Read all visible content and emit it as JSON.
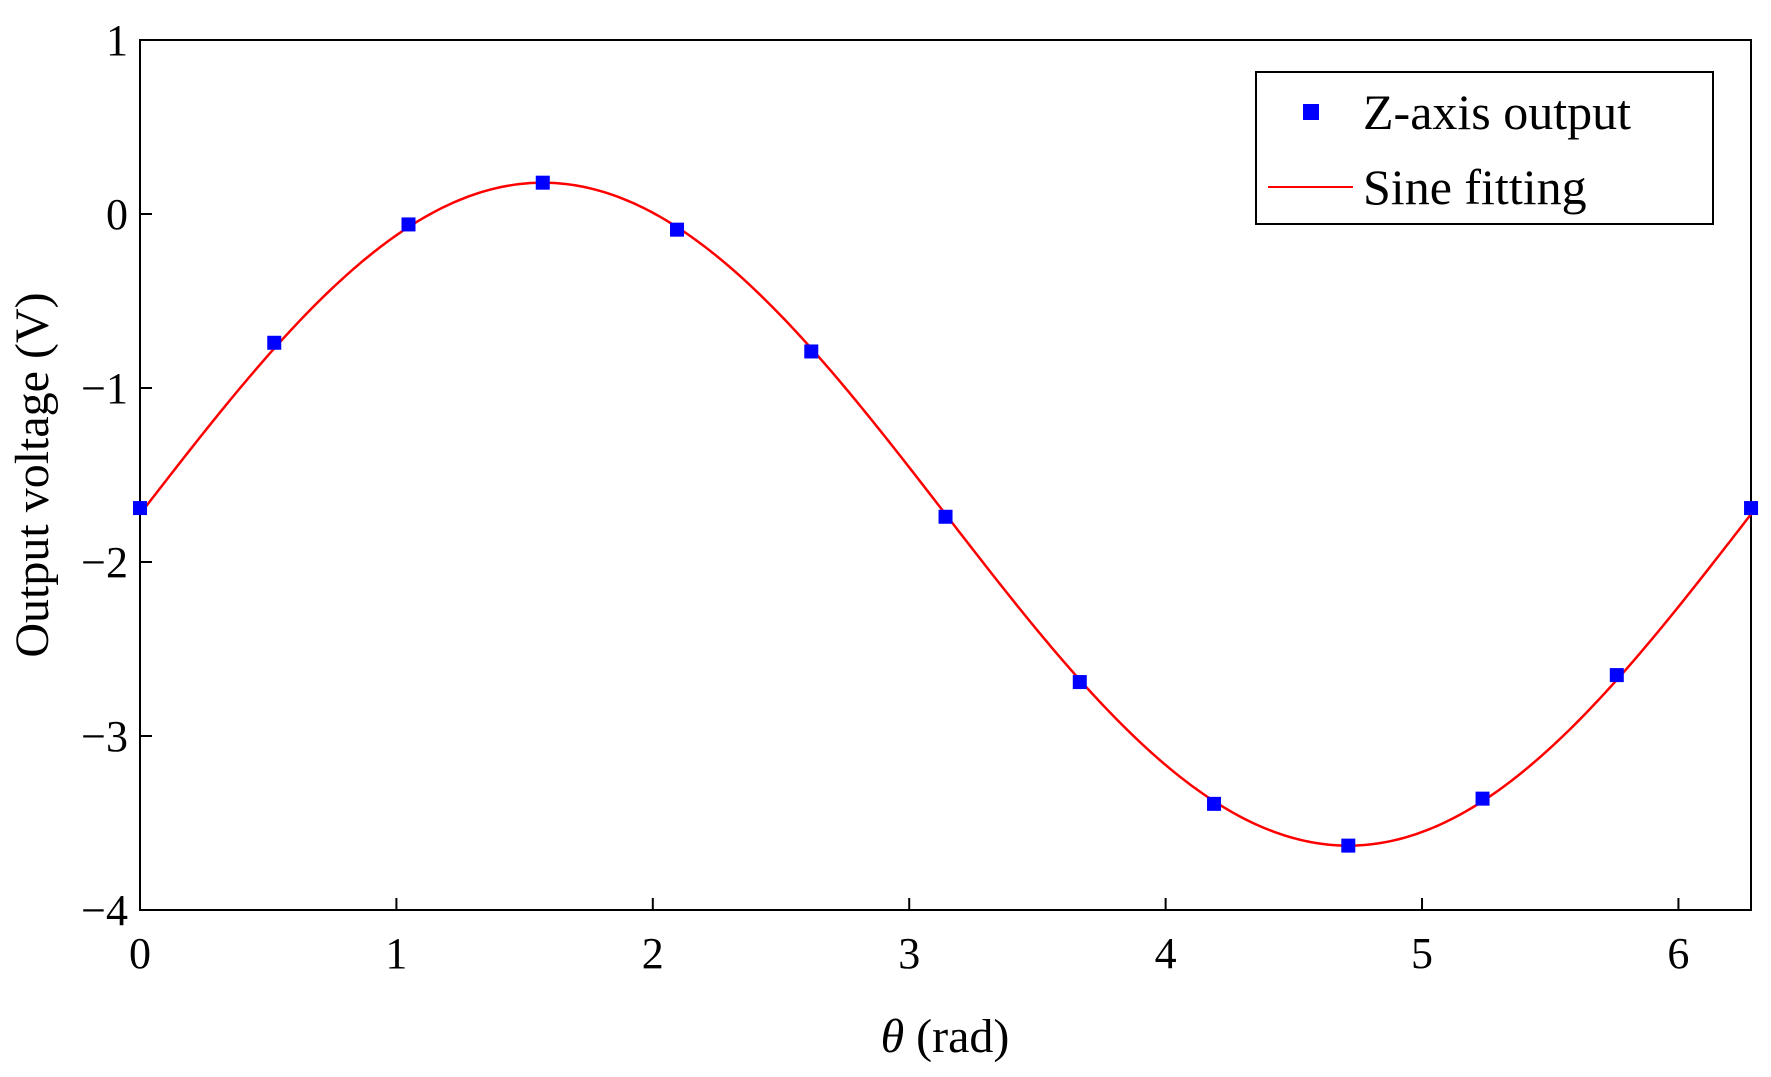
{
  "chart_data": {
    "type": "scatter",
    "xlabel_symbol": "θ",
    "xlabel_unit": " (rad)",
    "ylabel": "Output voltage (V)",
    "xlim": [
      0,
      6.283
    ],
    "ylim": [
      -4,
      1
    ],
    "xticks": [
      0,
      1,
      2,
      3,
      4,
      5,
      6
    ],
    "xtick_labels": [
      "0",
      "1",
      "2",
      "3",
      "4",
      "5",
      "6"
    ],
    "yticks": [
      1,
      0,
      -1,
      -2,
      -3,
      -4
    ],
    "ytick_labels": [
      "1",
      "0",
      "−1",
      "−2",
      "−3",
      "−4"
    ],
    "grid": false,
    "legend_position": "top-right",
    "series": [
      {
        "name": "Z-axis output",
        "kind": "markers",
        "marker": "square",
        "color": "#0000ff",
        "x": [
          0,
          0.5236,
          1.0472,
          1.5708,
          2.0944,
          2.618,
          3.1416,
          3.6652,
          4.1888,
          4.7124,
          5.236,
          5.7596,
          6.2832
        ],
        "y": [
          -1.69,
          -0.74,
          -0.06,
          0.18,
          -0.09,
          -0.79,
          -1.74,
          -2.69,
          -3.39,
          -3.63,
          -3.36,
          -2.65,
          -1.69
        ]
      },
      {
        "name": "Sine fitting",
        "kind": "line",
        "color": "#ff0000",
        "model": {
          "amplitude": 1.905,
          "offset": -1.725,
          "phase": 0.0
        }
      }
    ]
  }
}
